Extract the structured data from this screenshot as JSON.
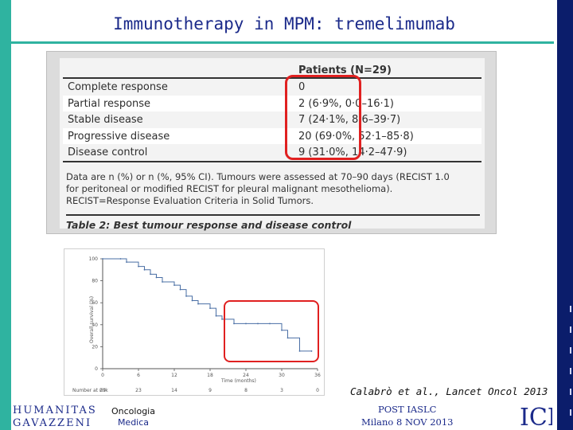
{
  "slide": {
    "title": "Immunotherapy in MPM: tremelimumab",
    "citation": "Calabrò et al., Lancet Oncol 2013"
  },
  "table": {
    "column_header": "Patients (N=29)",
    "rows": [
      {
        "label": "Complete response",
        "value": "0"
      },
      {
        "label": "Partial response",
        "value": "2 (6·9%, 0·0–16·1)"
      },
      {
        "label": "Stable disease",
        "value": "7 (24·1%, 8·6–39·7)"
      },
      {
        "label": "Progressive disease",
        "value": "20 (69·0%, 52·1–85·8)"
      },
      {
        "label": "Disease control",
        "value": "9 (31·0%, 14·2–47·9)"
      }
    ],
    "note_line1": "Data are n (%) or n (%, 95% CI). Tumours were assessed at 70–90 days (RECIST 1.0",
    "note_line2": "for peritoneal or modified RECIST for pleural malignant mesothelioma).",
    "note_line3": "RECIST=Response Evaluation Criteria in Solid Tumors.",
    "caption": "Table 2: Best tumour response and disease control"
  },
  "km_plot": {
    "ylabel": "Overall survival (%)",
    "xlabel": "Time (months)",
    "number_at_risk_label": "Number at risk",
    "number_at_risk": [
      "29",
      "23",
      "14",
      "9",
      "8",
      "3",
      "0"
    ]
  },
  "chart_data": {
    "type": "line",
    "xlabel": "Time (months)",
    "ylabel": "Overall survival (%)",
    "x_ticks": [
      0,
      6,
      12,
      18,
      24,
      30,
      36
    ],
    "y_ticks": [
      0,
      20,
      40,
      60,
      80,
      100
    ],
    "xlim": [
      0,
      36
    ],
    "ylim": [
      0,
      100
    ],
    "series": [
      {
        "x": [
          0,
          3,
          4,
          6,
          7,
          8,
          9,
          10,
          12,
          13,
          14,
          15,
          16,
          18,
          19,
          20,
          22,
          24,
          26,
          28,
          30,
          31,
          33,
          35
        ],
        "y": [
          100,
          100,
          97,
          93,
          90,
          86,
          83,
          79,
          76,
          72,
          66,
          62,
          59,
          55,
          48,
          45,
          41,
          41,
          41,
          41,
          35,
          28,
          16,
          16
        ]
      }
    ]
  },
  "footer": {
    "logo_line1": "HUMANITAS",
    "logo_line2": "GAVAZZENI",
    "dept_line1": "Oncologia",
    "dept_line2": "Medica",
    "event_line1": "POST IASLC",
    "event_line2": "Milano 8 NOV 2013",
    "ich_logo": "ICH"
  },
  "colors": {
    "accent_teal": "#2fb3a0",
    "navy": "#0b1d6b",
    "highlight_red": "#e02020",
    "curve": "#4a6fa5"
  }
}
